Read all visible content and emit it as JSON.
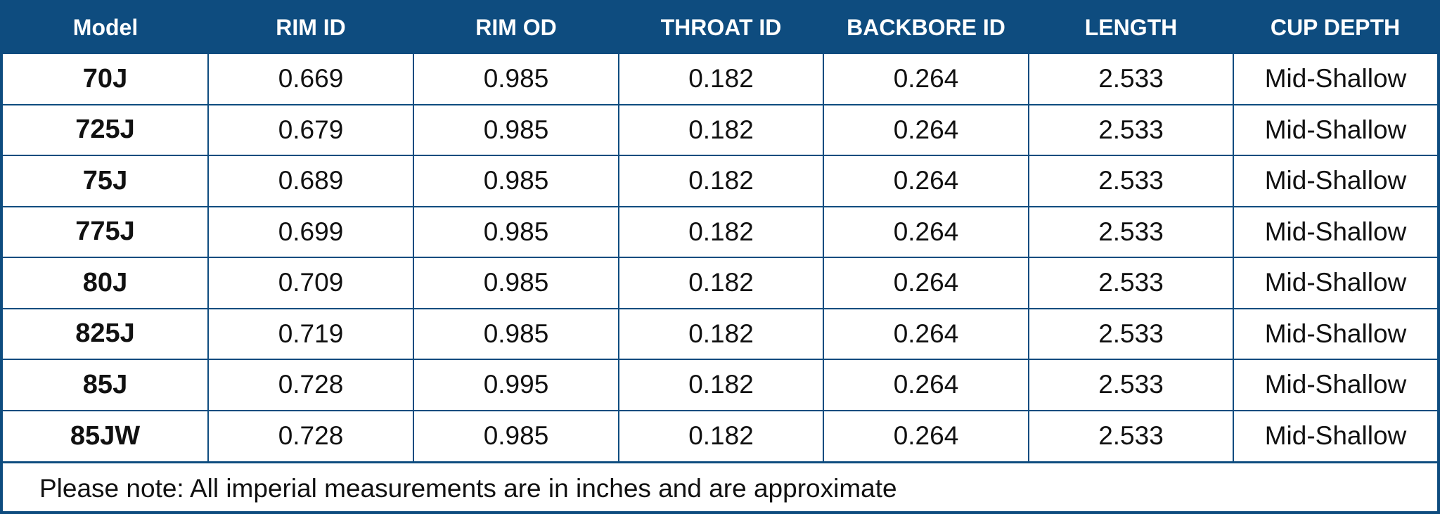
{
  "table": {
    "headers": [
      "Model",
      "RIM ID",
      "RIM OD",
      "THROAT ID",
      "BACKBORE ID",
      "LENGTH",
      "CUP DEPTH"
    ],
    "rows": [
      [
        "70J",
        "0.669",
        "0.985",
        "0.182",
        "0.264",
        "2.533",
        "Mid-Shallow"
      ],
      [
        "725J",
        "0.679",
        "0.985",
        "0.182",
        "0.264",
        "2.533",
        "Mid-Shallow"
      ],
      [
        "75J",
        "0.689",
        "0.985",
        "0.182",
        "0.264",
        "2.533",
        "Mid-Shallow"
      ],
      [
        "775J",
        "0.699",
        "0.985",
        "0.182",
        "0.264",
        "2.533",
        "Mid-Shallow"
      ],
      [
        "80J",
        "0.709",
        "0.985",
        "0.182",
        "0.264",
        "2.533",
        "Mid-Shallow"
      ],
      [
        "825J",
        "0.719",
        "0.985",
        "0.182",
        "0.264",
        "2.533",
        "Mid-Shallow"
      ],
      [
        "85J",
        "0.728",
        "0.995",
        "0.182",
        "0.264",
        "2.533",
        "Mid-Shallow"
      ],
      [
        "85JW",
        "0.728",
        "0.985",
        "0.182",
        "0.264",
        "2.533",
        "Mid-Shallow"
      ]
    ]
  },
  "note": "Please note: All imperial measurements are in inches and are approximate",
  "colors": {
    "header_background": "#0e4c7f",
    "header_text": "#ffffff",
    "grid_lines": "#0e4c7f",
    "body_text": "#111111"
  }
}
